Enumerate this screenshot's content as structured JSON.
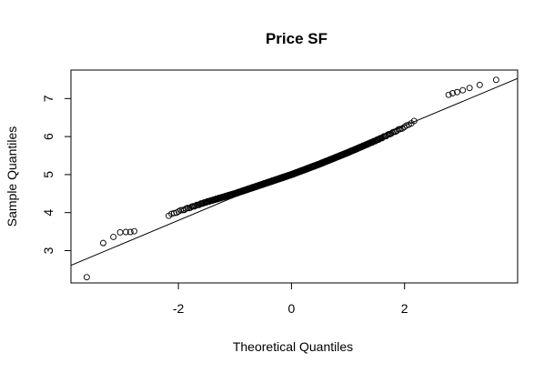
{
  "chart_data": {
    "type": "scatter",
    "title": "Price SF",
    "xlabel": "Theoretical Quantiles",
    "ylabel": "Sample Quantiles",
    "xlim": [
      -3.9,
      4.0
    ],
    "ylim": [
      2.15,
      7.75
    ],
    "xticks": [
      -2,
      0,
      2
    ],
    "yticks": [
      3,
      4,
      5,
      6,
      7
    ],
    "grid": false,
    "legend": "none",
    "point_style": "open-circle",
    "colors": {
      "points": "#000000",
      "line": "#000000",
      "axes": "#000000"
    },
    "reference_line": {
      "slope": 0.6224,
      "intercept": 5.04
    },
    "sample": {
      "n": 500,
      "tail_points": [
        {
          "x": -3.62,
          "y": 2.3
        },
        {
          "x": -3.33,
          "y": 3.2
        },
        {
          "x": -3.15,
          "y": 3.36
        },
        {
          "x": -3.03,
          "y": 3.48
        },
        {
          "x": -2.93,
          "y": 3.49
        },
        {
          "x": -2.85,
          "y": 3.49
        },
        {
          "x": -2.78,
          "y": 3.51
        },
        {
          "x": 2.78,
          "y": 7.1
        },
        {
          "x": 2.85,
          "y": 7.14
        },
        {
          "x": 2.93,
          "y": 7.17
        },
        {
          "x": 3.03,
          "y": 7.22
        },
        {
          "x": 3.15,
          "y": 7.28
        },
        {
          "x": 3.33,
          "y": 7.36
        },
        {
          "x": 3.62,
          "y": 7.49
        }
      ],
      "knots": [
        {
          "x": -2.75,
          "y": 3.62
        },
        {
          "x": -2.5,
          "y": 3.72
        },
        {
          "x": -2.0,
          "y": 4.03
        },
        {
          "x": -1.5,
          "y": 4.28
        },
        {
          "x": -1.0,
          "y": 4.5
        },
        {
          "x": -0.5,
          "y": 4.75
        },
        {
          "x": 0.0,
          "y": 5.0
        },
        {
          "x": 0.5,
          "y": 5.28
        },
        {
          "x": 1.0,
          "y": 5.58
        },
        {
          "x": 1.5,
          "y": 5.9
        },
        {
          "x": 2.0,
          "y": 6.25
        },
        {
          "x": 2.5,
          "y": 6.7
        },
        {
          "x": 2.75,
          "y": 7.05
        }
      ]
    }
  }
}
